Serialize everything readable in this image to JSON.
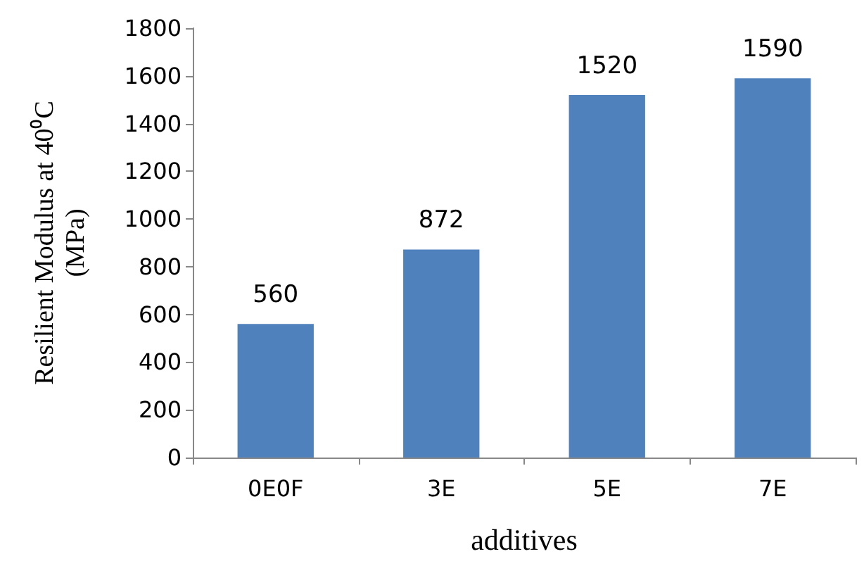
{
  "chart_data": {
    "type": "bar",
    "xlabel": "additives",
    "ylabel": "Resilient Modulus at 40⁰C\n(MPa)",
    "categories": [
      "0E0F",
      "3E",
      "5E",
      "7E"
    ],
    "values": [
      560,
      872,
      1520,
      1590
    ],
    "color": "#4f81bd",
    "ylim": [
      0,
      1800
    ],
    "yticks": [
      0,
      200,
      400,
      600,
      800,
      1000,
      1200,
      1400,
      1600,
      1800
    ],
    "grid": false,
    "data_labels": true
  }
}
